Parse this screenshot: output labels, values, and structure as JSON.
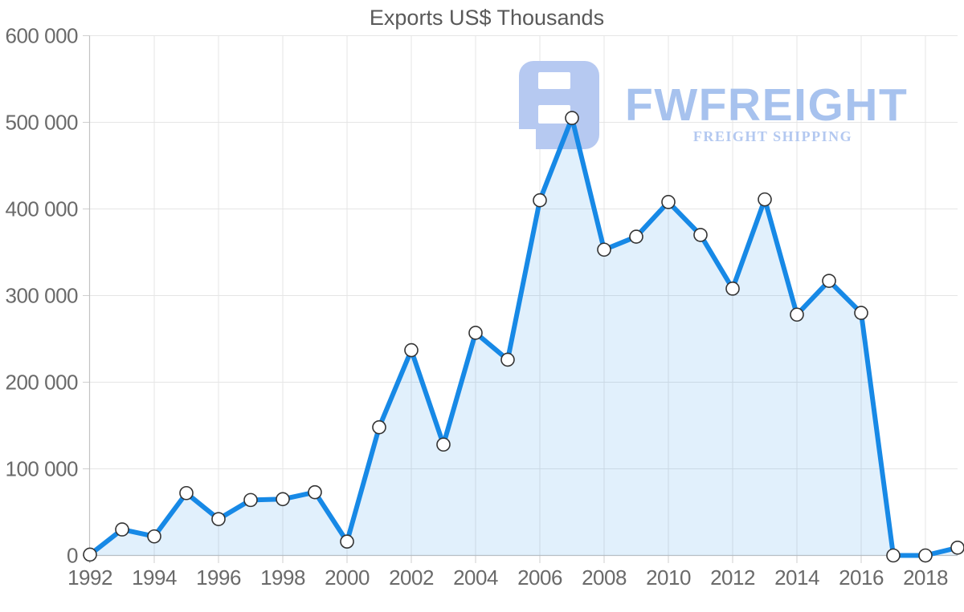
{
  "title": "Exports US$ Thousands",
  "watermark": {
    "brand": "FWFREIGHT",
    "tagline": "FREIGHT SHIPPING",
    "icon": "fwfreight-logo-icon"
  },
  "colors": {
    "line": "#1789e6",
    "area_fill": "rgba(23,137,230,0.13)",
    "marker_fill": "#ffffff",
    "marker_stroke": "#333333",
    "grid": "#e5e5e5",
    "axis": "#c2c2c2",
    "tick": "#cfcfcf",
    "label": "#6a6a6a",
    "title_text": "#595959",
    "watermark_icon": "#b6c9f1",
    "watermark_brand": "#a7c2ee",
    "watermark_tagline": "#b3c8f0"
  },
  "chart_data": {
    "type": "area",
    "title": "Exports US$ Thousands",
    "series_name": "Exports US$ Thousands",
    "x": [
      1992,
      1993,
      1994,
      1995,
      1996,
      1997,
      1998,
      1999,
      2000,
      2001,
      2002,
      2003,
      2004,
      2005,
      2006,
      2007,
      2008,
      2009,
      2010,
      2011,
      2012,
      2013,
      2014,
      2015,
      2016,
      2017,
      2018,
      2019
    ],
    "values": [
      1000,
      30000,
      22000,
      72000,
      42000,
      64000,
      65000,
      73000,
      16000,
      148000,
      237000,
      128000,
      257000,
      226000,
      410000,
      505000,
      353000,
      368000,
      408000,
      370000,
      308000,
      411000,
      278000,
      317000,
      280000,
      0,
      0,
      9000
    ],
    "xlabel": "",
    "ylabel": "",
    "xlim": [
      1992,
      2019
    ],
    "ylim": [
      0,
      600000
    ],
    "x_ticks": [
      1992,
      1994,
      1996,
      1998,
      2000,
      2002,
      2004,
      2006,
      2008,
      2010,
      2012,
      2014,
      2016,
      2018
    ],
    "x_tick_labels": [
      "1992",
      "1994",
      "1996",
      "1998",
      "2000",
      "2002",
      "2004",
      "2006",
      "2008",
      "2010",
      "2012",
      "2014",
      "2016",
      "2018"
    ],
    "y_ticks": [
      0,
      100000,
      200000,
      300000,
      400000,
      500000,
      600000
    ],
    "y_tick_labels": [
      "0",
      "100 000",
      "200 000",
      "300 000",
      "400 000",
      "500 000",
      "600 000"
    ],
    "grid": true,
    "legend": "none",
    "marker": "circle-white-outlined"
  }
}
